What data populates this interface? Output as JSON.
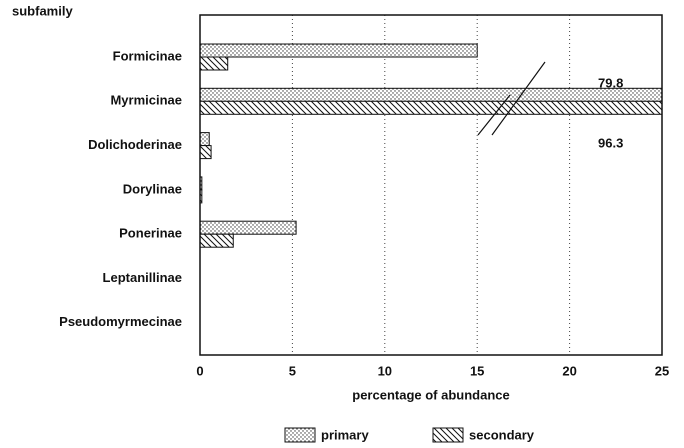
{
  "chart_data": {
    "type": "bar",
    "orientation": "horizontal",
    "y_label": "subfamily",
    "x_label": "percentage of abundance",
    "categories": [
      "Formicinae",
      "Myrmicinae",
      "Dolichoderinae",
      "Dorylinae",
      "Ponerinae",
      "Leptanillinae",
      "Pseudomyrmecinae"
    ],
    "series": [
      {
        "name": "primary",
        "pattern": "dots",
        "values": [
          15,
          79.8,
          0.5,
          0.1,
          5.2,
          0,
          0
        ],
        "value_labels": [
          null,
          "79.8",
          null,
          null,
          null,
          null,
          null
        ]
      },
      {
        "name": "secondary",
        "pattern": "hatch",
        "values": [
          1.5,
          96.3,
          0.6,
          0.1,
          1.8,
          0,
          0
        ],
        "value_labels": [
          null,
          "96.3",
          null,
          null,
          null,
          null,
          null
        ]
      }
    ],
    "xlim": [
      0,
      25
    ],
    "xticks": [
      0,
      5,
      10,
      15,
      20,
      25
    ],
    "grid": true,
    "legend": "bottom"
  }
}
